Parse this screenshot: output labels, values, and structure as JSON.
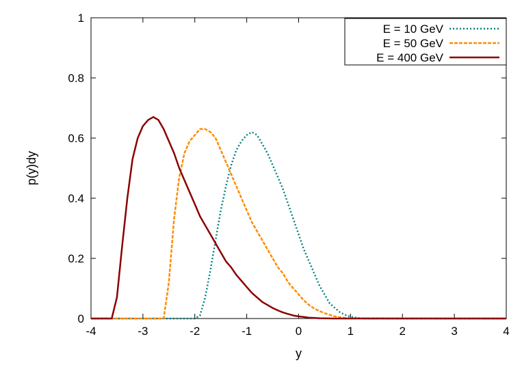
{
  "chart_data": {
    "type": "line",
    "title": "",
    "xlabel": "y",
    "ylabel": "p(y)dy",
    "xlim": [
      -4,
      4
    ],
    "ylim": [
      0,
      1
    ],
    "xticks": [
      "-4",
      "-3",
      "-2",
      "-1",
      "0",
      "1",
      "2",
      "3",
      "4"
    ],
    "yticks": [
      "0",
      "0.2",
      "0.4",
      "0.6",
      "0.8",
      "1"
    ],
    "grid": false,
    "legend_position": "top-right",
    "series": [
      {
        "name": "E = 10 GeV",
        "color": "#008080",
        "style": "dotted",
        "x": [
          -4.0,
          -2.0,
          -1.9,
          -1.8,
          -1.7,
          -1.6,
          -1.5,
          -1.4,
          -1.3,
          -1.2,
          -1.1,
          -1.0,
          -0.9,
          -0.8,
          -0.7,
          -0.6,
          -0.5,
          -0.4,
          -0.3,
          -0.2,
          -0.1,
          0.0,
          0.1,
          0.2,
          0.3,
          0.4,
          0.5,
          0.6,
          0.7,
          0.8,
          0.9,
          1.0,
          1.1,
          1.2,
          1.3,
          4.0
        ],
        "y": [
          0.0,
          0.0,
          0.01,
          0.07,
          0.16,
          0.26,
          0.36,
          0.44,
          0.51,
          0.56,
          0.59,
          0.61,
          0.62,
          0.61,
          0.58,
          0.55,
          0.51,
          0.47,
          0.43,
          0.38,
          0.33,
          0.28,
          0.23,
          0.19,
          0.15,
          0.11,
          0.08,
          0.05,
          0.035,
          0.02,
          0.012,
          0.006,
          0.003,
          0.001,
          0.0,
          0.0
        ]
      },
      {
        "name": "E = 50 GeV",
        "color": "#ff8c00",
        "style": "dashed",
        "x": [
          -4.0,
          -2.6,
          -2.5,
          -2.4,
          -2.3,
          -2.2,
          -2.1,
          -2.0,
          -1.9,
          -1.8,
          -1.7,
          -1.6,
          -1.5,
          -1.4,
          -1.3,
          -1.2,
          -1.1,
          -1.0,
          -0.9,
          -0.8,
          -0.7,
          -0.6,
          -0.5,
          -0.4,
          -0.3,
          -0.2,
          -0.1,
          0.0,
          0.1,
          0.2,
          0.3,
          0.4,
          0.5,
          0.6,
          0.7,
          0.8,
          0.9,
          1.0,
          4.0
        ],
        "y": [
          0.0,
          0.0,
          0.12,
          0.33,
          0.47,
          0.55,
          0.59,
          0.61,
          0.63,
          0.63,
          0.62,
          0.6,
          0.56,
          0.52,
          0.48,
          0.44,
          0.4,
          0.36,
          0.32,
          0.29,
          0.26,
          0.23,
          0.2,
          0.17,
          0.15,
          0.12,
          0.1,
          0.08,
          0.06,
          0.045,
          0.033,
          0.025,
          0.018,
          0.012,
          0.007,
          0.004,
          0.002,
          0.001,
          0.0
        ]
      },
      {
        "name": "E = 400 GeV",
        "color": "#8b0000",
        "style": "solid",
        "x": [
          -4.0,
          -3.6,
          -3.5,
          -3.4,
          -3.3,
          -3.2,
          -3.1,
          -3.0,
          -2.9,
          -2.8,
          -2.7,
          -2.6,
          -2.5,
          -2.4,
          -2.3,
          -2.2,
          -2.1,
          -2.0,
          -1.9,
          -1.8,
          -1.7,
          -1.6,
          -1.5,
          -1.4,
          -1.3,
          -1.2,
          -1.1,
          -1.0,
          -0.9,
          -0.8,
          -0.7,
          -0.6,
          -0.5,
          -0.4,
          -0.3,
          -0.2,
          -0.1,
          0.0,
          0.1,
          0.2,
          0.3,
          0.4,
          0.5,
          0.6,
          0.7,
          0.8,
          4.0
        ],
        "y": [
          0.0,
          0.0,
          0.07,
          0.24,
          0.4,
          0.53,
          0.6,
          0.64,
          0.66,
          0.67,
          0.66,
          0.63,
          0.59,
          0.55,
          0.5,
          0.46,
          0.42,
          0.38,
          0.34,
          0.31,
          0.28,
          0.25,
          0.22,
          0.19,
          0.17,
          0.145,
          0.125,
          0.105,
          0.085,
          0.07,
          0.055,
          0.045,
          0.035,
          0.027,
          0.02,
          0.015,
          0.01,
          0.007,
          0.005,
          0.003,
          0.002,
          0.001,
          0.0005,
          0.0002,
          0.0001,
          0.0,
          0.0
        ]
      }
    ]
  }
}
